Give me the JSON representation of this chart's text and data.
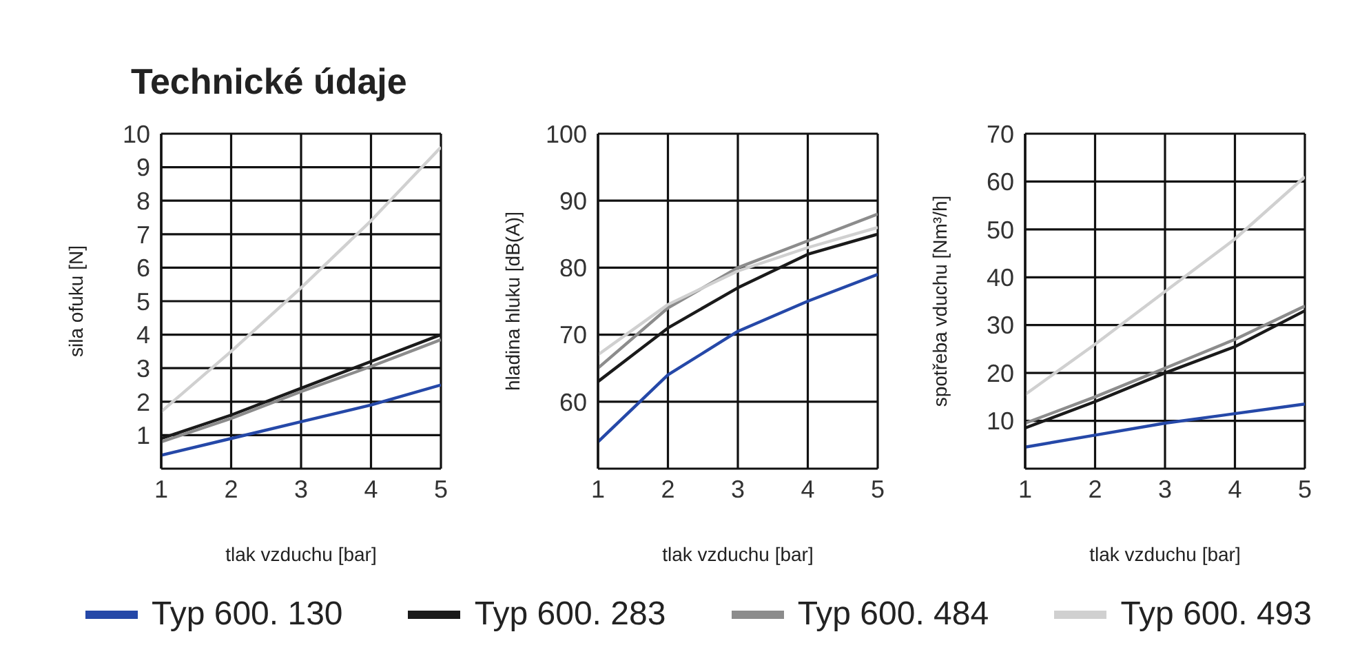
{
  "chart_data": [
    {
      "type": "line",
      "title": "Technické údaje",
      "xlabel": "tlak vzduchu [bar]",
      "ylabel": "sila ofuku [N]",
      "x": [
        1,
        2,
        3,
        4,
        5
      ],
      "xlim": [
        1,
        5
      ],
      "xticks": [
        1,
        2,
        3,
        4,
        5
      ],
      "ylim": [
        0,
        10
      ],
      "yticks": [
        1,
        2,
        3,
        4,
        5,
        6,
        7,
        8,
        9,
        10
      ],
      "grid": true,
      "legend": "bottom",
      "series": [
        {
          "name": "Typ 600. 130",
          "color": "#2548a8",
          "values": [
            0.4,
            0.9,
            1.4,
            1.9,
            2.5
          ]
        },
        {
          "name": "Typ 600. 283",
          "color": "#1a1a1a",
          "values": [
            0.9,
            1.6,
            2.4,
            3.2,
            4.0
          ]
        },
        {
          "name": "Typ 600. 484",
          "color": "#8c8c8c",
          "values": [
            0.8,
            1.5,
            2.3,
            3.05,
            3.85
          ]
        },
        {
          "name": "Typ 600. 493",
          "color": "#d0d0d0",
          "values": [
            1.7,
            3.5,
            5.4,
            7.4,
            9.6
          ]
        }
      ]
    },
    {
      "type": "line",
      "xlabel": "tlak vzduchu [bar]",
      "ylabel": "hladina hluku [dB(A)]",
      "x": [
        1,
        2,
        3,
        4,
        5
      ],
      "xlim": [
        1,
        5
      ],
      "xticks": [
        1,
        2,
        3,
        4,
        5
      ],
      "ylim": [
        50,
        100
      ],
      "yticks": [
        60,
        70,
        80,
        90,
        100
      ],
      "grid": true,
      "series": [
        {
          "color": "#2548a8",
          "values": [
            54,
            64,
            70.5,
            75,
            79
          ]
        },
        {
          "color": "#1a1a1a",
          "values": [
            63,
            71,
            77,
            82,
            85
          ]
        },
        {
          "color": "#8c8c8c",
          "values": [
            65,
            74,
            80,
            84,
            88
          ]
        },
        {
          "color": "#d0d0d0",
          "values": [
            67,
            74.5,
            79.5,
            83,
            86
          ]
        }
      ]
    },
    {
      "type": "line",
      "xlabel": "tlak vzduchu [bar]",
      "ylabel": "spotřeba vduchu [Nm³/h]",
      "x": [
        1,
        2,
        3,
        4,
        5
      ],
      "xlim": [
        1,
        5
      ],
      "xticks": [
        1,
        2,
        3,
        4,
        5
      ],
      "ylim": [
        0,
        70
      ],
      "yticks": [
        10,
        20,
        30,
        40,
        50,
        60,
        70
      ],
      "grid": true,
      "series": [
        {
          "color": "#2548a8",
          "values": [
            4.5,
            7,
            9.5,
            11.5,
            13.5
          ]
        },
        {
          "color": "#1a1a1a",
          "values": [
            8.5,
            14,
            20,
            25.5,
            33
          ]
        },
        {
          "color": "#8c8c8c",
          "values": [
            9.5,
            15,
            21,
            27,
            34
          ]
        },
        {
          "color": "#d0d0d0",
          "values": [
            15.5,
            26,
            37,
            48,
            61
          ]
        }
      ]
    }
  ]
}
